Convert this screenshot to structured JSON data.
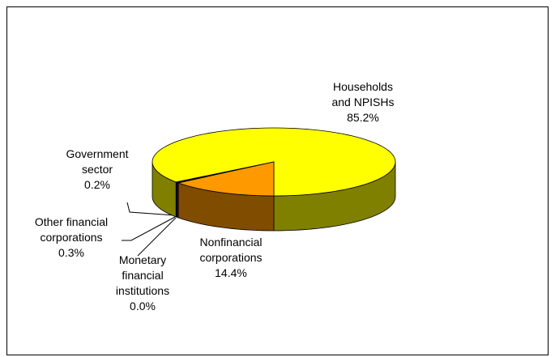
{
  "chart_data": {
    "type": "pie3d",
    "categories": [
      "Households and NPISHs",
      "Government sector",
      "Other financial corporations",
      "Monetary financial institutions",
      "Nonfinancial corporations"
    ],
    "values": [
      85.2,
      0.2,
      0.3,
      0.0,
      14.4
    ],
    "value_labels": [
      "85.2%",
      "0.2%",
      "0.3%",
      "0.0%",
      "14.4%"
    ],
    "colors": [
      "#ffff00",
      "#000080",
      "#800080",
      "#333333",
      "#ff9900"
    ],
    "side_colors": [
      "#808000",
      "#000040",
      "#400040",
      "#1a1a1a",
      "#804c00"
    ]
  }
}
